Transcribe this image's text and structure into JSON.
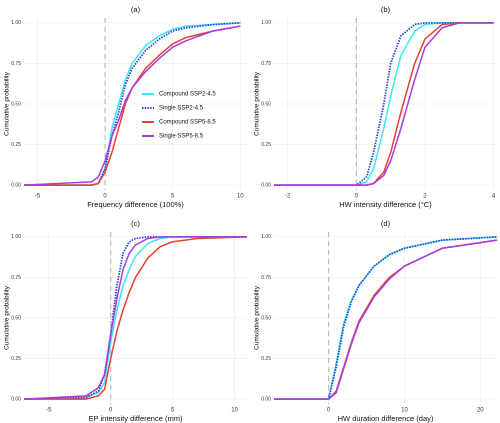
{
  "chart_data": [
    {
      "type": "line",
      "title": "(a)",
      "xlabel": "Frequency difference (100%)",
      "ylabel": "Cumulative probability",
      "x": [
        -6,
        -1,
        -0.5,
        0,
        0.5,
        1,
        1.5,
        2,
        3,
        4,
        5,
        6,
        8,
        10
      ],
      "series": [
        {
          "name": "Compound SSP2-4.5",
          "color": "#3de8f5",
          "values": [
            0,
            0,
            0.01,
            0.1,
            0.35,
            0.5,
            0.65,
            0.75,
            0.86,
            0.92,
            0.96,
            0.98,
            0.99,
            1
          ]
        },
        {
          "name": "Single SSP2-4.5",
          "color": "#2b45d6",
          "linestyle": "dotted",
          "values": [
            0,
            0,
            0.01,
            0.1,
            0.3,
            0.45,
            0.62,
            0.72,
            0.83,
            0.9,
            0.95,
            0.97,
            0.99,
            1
          ]
        },
        {
          "name": "Compound SSP5-8.5",
          "color": "#e8402f",
          "values": [
            0,
            0,
            0.01,
            0.08,
            0.2,
            0.35,
            0.5,
            0.6,
            0.72,
            0.8,
            0.87,
            0.91,
            0.95,
            0.98
          ]
        },
        {
          "name": "Single SSP5-8.5",
          "color": "#a63ce0",
          "values": [
            0,
            0.02,
            0.05,
            0.15,
            0.3,
            0.4,
            0.52,
            0.6,
            0.7,
            0.78,
            0.85,
            0.89,
            0.95,
            0.98
          ]
        }
      ],
      "xlim": [
        -6,
        10.5
      ],
      "xticks": [
        -5,
        0,
        5,
        10
      ],
      "ylim": [
        -0.03,
        1.03
      ],
      "yticks": [
        {
          "value": 0,
          "label": "0.00"
        },
        0.25,
        {
          "value": 0.5,
          "label": "0.50"
        },
        0.75,
        {
          "value": 1,
          "label": "1.00"
        }
      ],
      "vline": 0,
      "grid": true,
      "legend": "center-right"
    },
    {
      "type": "line",
      "title": "(b)",
      "xlabel": "HW intensity difference (°C)",
      "ylabel": "Cumulative probability",
      "x": [
        -2.4,
        0,
        0.3,
        0.5,
        0.8,
        1,
        1.3,
        1.7,
        2,
        2.5,
        3,
        4
      ],
      "series": [
        {
          "color": "#3de8f5",
          "values": [
            0,
            0,
            0.02,
            0.1,
            0.35,
            0.55,
            0.8,
            0.95,
            0.99,
            1,
            1,
            1
          ]
        },
        {
          "color": "#2b45d6",
          "linestyle": "dotted",
          "values": [
            0,
            0,
            0.05,
            0.2,
            0.5,
            0.75,
            0.92,
            0.99,
            1,
            1,
            1,
            1
          ]
        },
        {
          "color": "#e8402f",
          "values": [
            0,
            0,
            0,
            0.01,
            0.08,
            0.2,
            0.45,
            0.75,
            0.9,
            0.99,
            1,
            1
          ]
        },
        {
          "color": "#a63ce0",
          "values": [
            0,
            0,
            0,
            0.01,
            0.06,
            0.15,
            0.35,
            0.65,
            0.85,
            0.97,
            1,
            1
          ]
        }
      ],
      "xlim": [
        -2.4,
        4.1
      ],
      "xticks": [
        -2,
        0,
        2,
        4
      ],
      "ylim": [
        -0.03,
        1.03
      ],
      "yticks": [
        {
          "value": 0,
          "label": "0.00"
        },
        0.25,
        {
          "value": 0.5,
          "label": "0.50"
        },
        0.75,
        {
          "value": 1,
          "label": "1.00"
        }
      ],
      "vline": 0,
      "grid": true
    },
    {
      "type": "line",
      "title": "(c)",
      "xlabel": "EP intensity difference (mm)",
      "ylabel": "Cumulative probability",
      "x": [
        -7,
        -2,
        -1,
        -0.5,
        0,
        0.5,
        1,
        1.5,
        2,
        3,
        4,
        5,
        7,
        11
      ],
      "series": [
        {
          "color": "#3de8f5",
          "values": [
            0,
            0.01,
            0.04,
            0.1,
            0.35,
            0.55,
            0.7,
            0.8,
            0.88,
            0.96,
            0.99,
            1,
            1,
            1
          ]
        },
        {
          "color": "#2b45d6",
          "linestyle": "dotted",
          "values": [
            0,
            0.01,
            0.05,
            0.15,
            0.4,
            0.7,
            0.9,
            0.97,
            0.99,
            1,
            1,
            1,
            1,
            1
          ]
        },
        {
          "color": "#e8402f",
          "values": [
            0,
            0,
            0.02,
            0.06,
            0.25,
            0.42,
            0.55,
            0.66,
            0.75,
            0.87,
            0.94,
            0.97,
            0.99,
            1
          ]
        },
        {
          "color": "#a63ce0",
          "values": [
            0,
            0.02,
            0.07,
            0.15,
            0.4,
            0.62,
            0.8,
            0.9,
            0.95,
            0.99,
            1,
            1,
            1,
            1
          ]
        }
      ],
      "xlim": [
        -7,
        11
      ],
      "xticks": [
        -5,
        0,
        5,
        10
      ],
      "ylim": [
        -0.03,
        1.03
      ],
      "yticks": [
        {
          "value": 0,
          "label": "0.00"
        },
        0.25,
        {
          "value": 0.5,
          "label": "0.50"
        },
        0.75,
        {
          "value": 1,
          "label": "1.00"
        }
      ],
      "vline": 0,
      "grid": true
    },
    {
      "type": "line",
      "title": "(d)",
      "xlabel": "HW duration difference (day)",
      "ylabel": "Cumulative probability",
      "x": [
        -7.2,
        0,
        1,
        2,
        3,
        4,
        6,
        8,
        10,
        15,
        22.2
      ],
      "series": [
        {
          "color": "#3de8f5",
          "values": [
            0,
            0,
            0.22,
            0.47,
            0.61,
            0.7,
            0.82,
            0.89,
            0.93,
            0.98,
            1
          ]
        },
        {
          "color": "#2b45d6",
          "linestyle": "dotted",
          "values": [
            0,
            0,
            0.2,
            0.45,
            0.6,
            0.7,
            0.82,
            0.89,
            0.93,
            0.98,
            1
          ]
        },
        {
          "color": "#e8402f",
          "values": [
            0,
            0,
            0.05,
            0.2,
            0.35,
            0.48,
            0.64,
            0.75,
            0.82,
            0.93,
            0.98
          ]
        },
        {
          "color": "#a63ce0",
          "values": [
            0,
            0,
            0.04,
            0.19,
            0.34,
            0.47,
            0.63,
            0.74,
            0.82,
            0.93,
            0.98
          ]
        }
      ],
      "xlim": [
        -7.2,
        22.2
      ],
      "xticks": [
        0,
        10,
        20
      ],
      "ylim": [
        -0.03,
        1.03
      ],
      "yticks": [
        {
          "value": 0,
          "label": "0.00"
        },
        0.25,
        {
          "value": 0.5,
          "label": "0.50"
        },
        0.75,
        {
          "value": 1,
          "label": "1.00"
        }
      ],
      "vline": 0,
      "grid": true
    }
  ]
}
